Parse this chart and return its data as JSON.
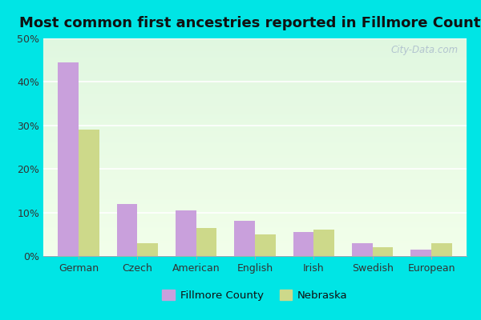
{
  "title": "Most common first ancestries reported in Fillmore County",
  "categories": [
    "German",
    "Czech",
    "American",
    "English",
    "Irish",
    "Swedish",
    "European"
  ],
  "fillmore": [
    44.5,
    12.0,
    10.5,
    8.0,
    5.5,
    3.0,
    1.5
  ],
  "nebraska": [
    29.0,
    3.0,
    6.5,
    5.0,
    6.0,
    2.0,
    3.0
  ],
  "fillmore_color": "#C9A0DC",
  "nebraska_color": "#CDD98A",
  "ylim": [
    0,
    50
  ],
  "yticks": [
    0,
    10,
    20,
    30,
    40,
    50
  ],
  "ytick_labels": [
    "0%",
    "10%",
    "20%",
    "30%",
    "40%",
    "50%"
  ],
  "fig_bg_color": "#00E5E5",
  "title_fontsize": 13,
  "bar_width": 0.35,
  "legend_labels": [
    "Fillmore County",
    "Nebraska"
  ],
  "watermark": "City-Data.com"
}
